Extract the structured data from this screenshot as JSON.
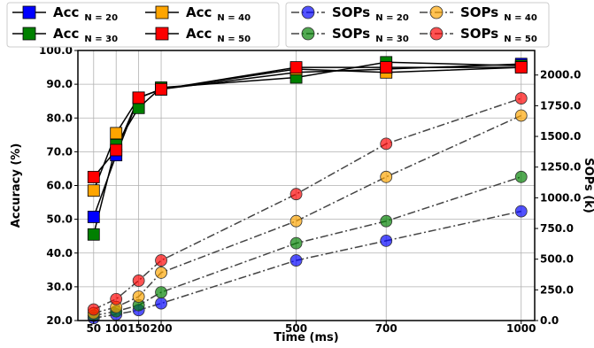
{
  "chart_data": {
    "type": "line",
    "xlabel": "Time (ms)",
    "ylabel": "Accuracy (%)",
    "y2label": "SOPs (k)",
    "x": [
      50,
      100,
      150,
      200,
      500,
      700,
      1000
    ],
    "x_tick_labels": [
      "50",
      "100",
      "150",
      "200",
      "500",
      "700",
      "1000"
    ],
    "xlim": [
      15,
      1030
    ],
    "ylim": [
      20,
      100
    ],
    "y_ticks": [
      20,
      30,
      40,
      50,
      60,
      70,
      80,
      90,
      100
    ],
    "y_tick_labels": [
      "20.0",
      "30.0",
      "40.0",
      "50.0",
      "60.0",
      "70.0",
      "80.0",
      "90.0",
      "100.0"
    ],
    "y2lim": [
      0,
      2200
    ],
    "y2_ticks": [
      0,
      250,
      500,
      750,
      1000,
      1250,
      1500,
      1750,
      2000
    ],
    "y2_tick_labels": [
      "0.0",
      "250.0",
      "500.0",
      "750.0",
      "1000.0",
      "1250.0",
      "1500.0",
      "1750.0",
      "2000.0"
    ],
    "grid": true,
    "legend_placement": "top",
    "series": [
      {
        "name": "Acc",
        "subscript": "N = 20",
        "axis": "left",
        "kind": "acc",
        "color": "#0000ff",
        "values": [
          50.7,
          69.0,
          86.0,
          88.5,
          93.5,
          94.5,
          96.0
        ]
      },
      {
        "name": "Acc",
        "subscript": "N = 30",
        "axis": "left",
        "kind": "acc",
        "color": "#008000",
        "values": [
          45.5,
          72.0,
          83.0,
          89.0,
          92.0,
          96.5,
          95.5
        ]
      },
      {
        "name": "Acc",
        "subscript": "N = 40",
        "axis": "left",
        "kind": "acc",
        "color": "#ffa500",
        "values": [
          58.5,
          75.5,
          86.0,
          88.5,
          94.5,
          93.5,
          95.0
        ]
      },
      {
        "name": "Acc",
        "subscript": "N = 50",
        "axis": "left",
        "kind": "acc",
        "color": "#ff0000",
        "values": [
          62.5,
          70.5,
          86.0,
          88.5,
          95.0,
          95.0,
          95.0
        ]
      },
      {
        "name": "SOPs",
        "subscript": "N = 20",
        "axis": "right",
        "kind": "sops",
        "color": "#0000ff",
        "values": [
          20,
          50,
          85,
          140,
          490,
          650,
          890
        ]
      },
      {
        "name": "SOPs",
        "subscript": "N = 30",
        "axis": "right",
        "kind": "sops",
        "color": "#008000",
        "values": [
          40,
          75,
          125,
          230,
          630,
          810,
          1170
        ]
      },
      {
        "name": "SOPs",
        "subscript": "N = 40",
        "axis": "right",
        "kind": "sops",
        "color": "#ffa500",
        "values": [
          60,
          110,
          195,
          390,
          810,
          1170,
          1670
        ]
      },
      {
        "name": "SOPs",
        "subscript": "N = 50",
        "axis": "right",
        "kind": "sops",
        "color": "#ff0000",
        "values": [
          90,
          175,
          325,
          490,
          1030,
          1440,
          1810
        ]
      }
    ]
  }
}
